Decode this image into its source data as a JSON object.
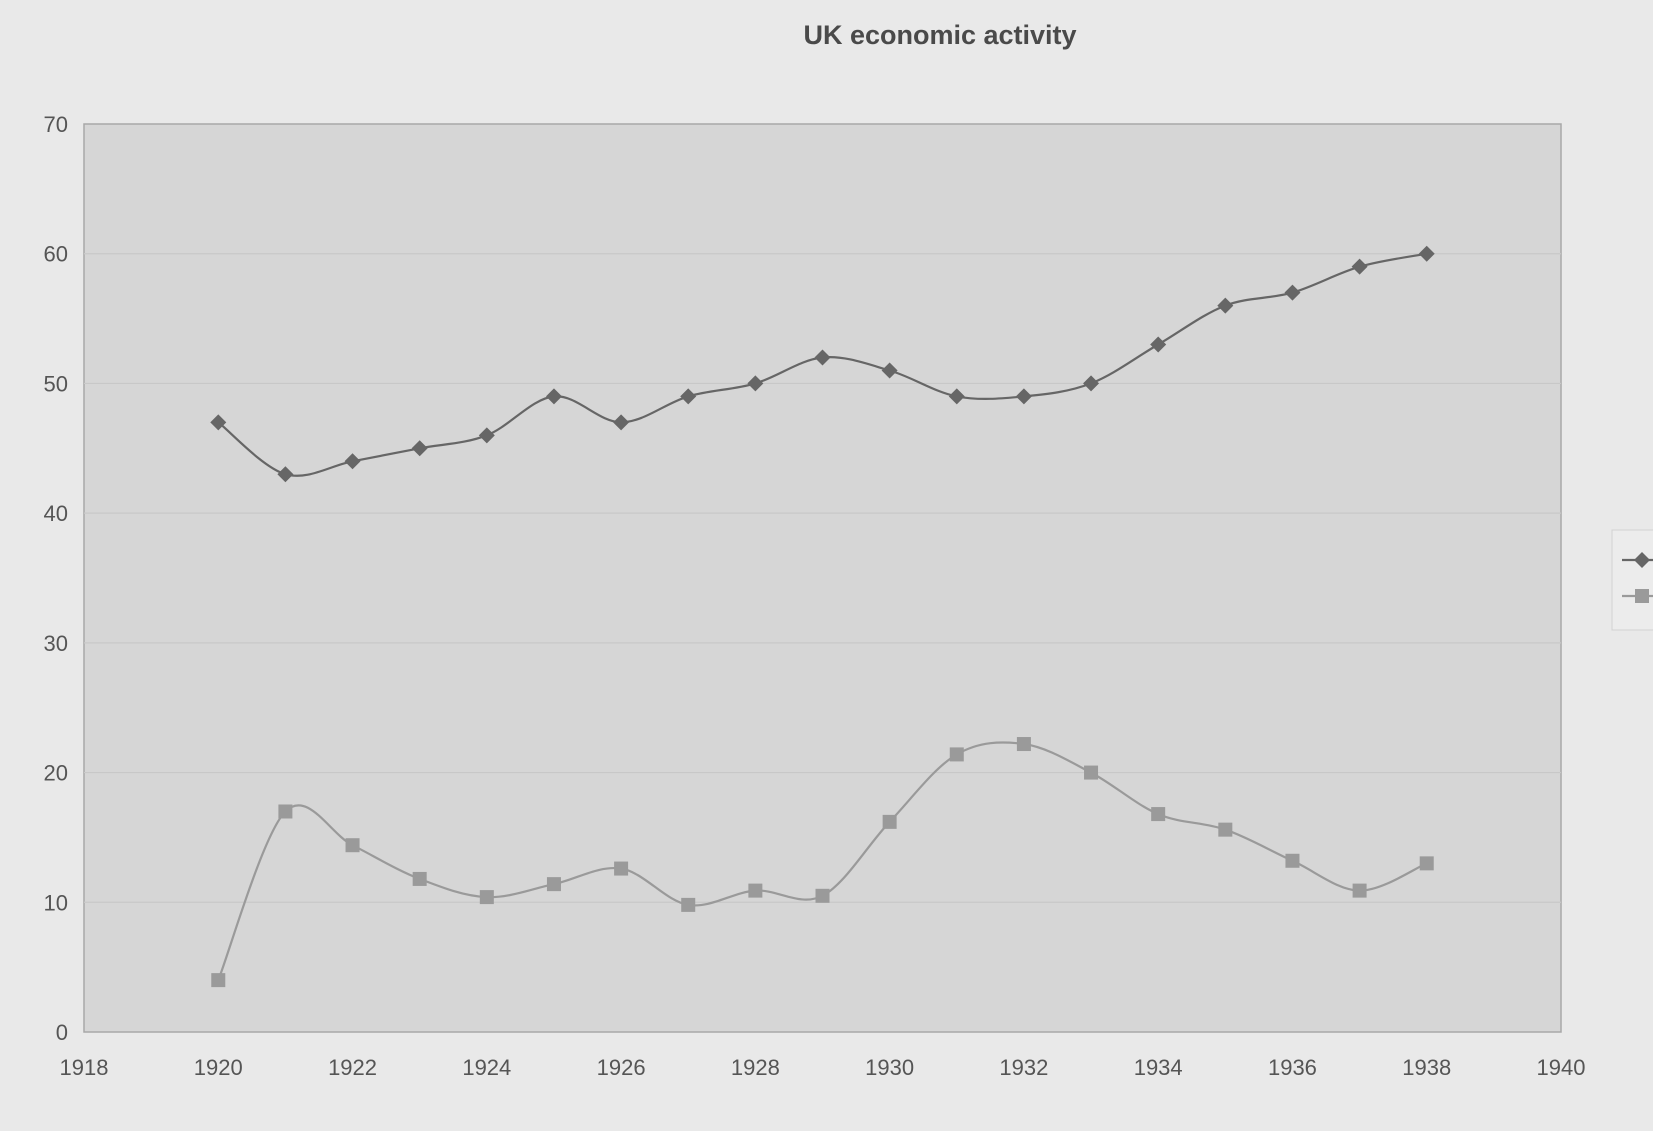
{
  "chart_data": {
    "type": "line",
    "title": "UK economic activity",
    "xlabel": "",
    "ylabel": "",
    "xlim": [
      1918,
      1940
    ],
    "ylim": [
      0,
      70
    ],
    "x_ticks": [
      1918,
      1920,
      1922,
      1924,
      1926,
      1928,
      1930,
      1932,
      1934,
      1936,
      1938,
      1940
    ],
    "y_ticks": [
      0,
      10,
      20,
      30,
      40,
      50,
      60,
      70
    ],
    "grid": "horizontal",
    "smoothed": true,
    "legend_position": "right",
    "x": [
      1920,
      1921,
      1922,
      1923,
      1924,
      1925,
      1926,
      1927,
      1928,
      1929,
      1930,
      1931,
      1932,
      1933,
      1934,
      1935,
      1936,
      1937,
      1938
    ],
    "series": [
      {
        "marker": "diamond",
        "color": "#666666",
        "values": [
          47,
          43,
          44,
          45,
          46,
          49,
          47,
          49,
          50,
          52,
          51,
          49,
          49,
          50,
          53,
          56,
          57,
          59,
          60
        ]
      },
      {
        "marker": "square",
        "color": "#9a9a9a",
        "values": [
          4,
          17,
          14.4,
          11.8,
          10.4,
          11.4,
          12.6,
          9.8,
          10.9,
          10.5,
          16.2,
          21.4,
          22.2,
          20,
          16.8,
          15.6,
          13.2,
          10.9,
          13
        ]
      }
    ],
    "colors": {
      "background": "#e9e9e9",
      "plot_area": "#d6d6d6",
      "gridline": "#c8c8c8",
      "axis": "#a8a8a8"
    }
  }
}
